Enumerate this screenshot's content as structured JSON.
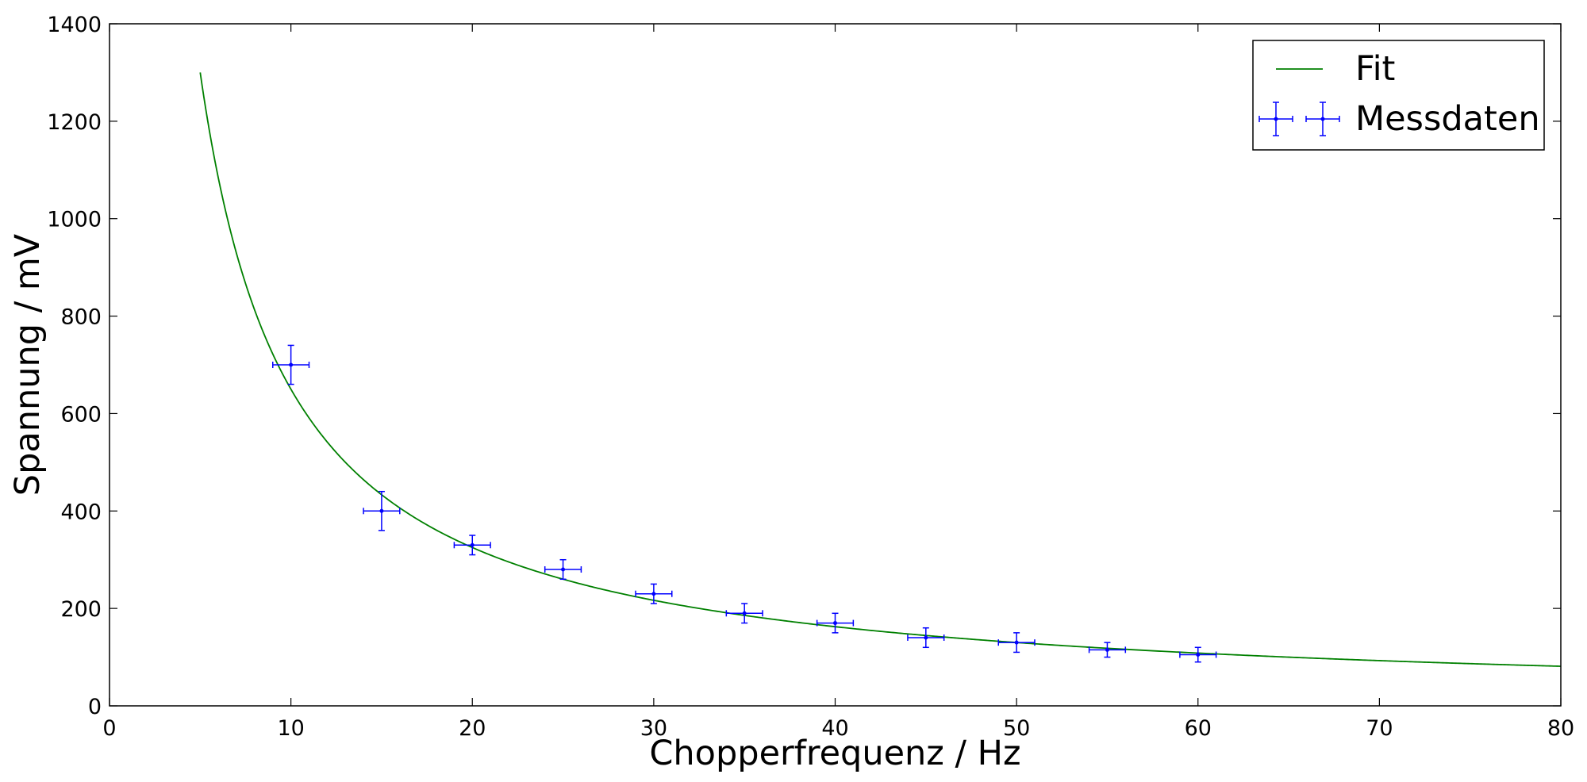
{
  "chart_data": {
    "type": "scatter",
    "xlabel": "Chopperfrequenz / Hz",
    "ylabel": "Spannung / mV",
    "xlim": [
      0,
      80
    ],
    "ylim": [
      0,
      1400
    ],
    "xticks": [
      0,
      10,
      20,
      30,
      40,
      50,
      60,
      70,
      80
    ],
    "yticks": [
      0,
      200,
      400,
      600,
      800,
      1000,
      1200,
      1400
    ],
    "grid": false,
    "legend_position": "top-right",
    "series": [
      {
        "name": "Fit",
        "kind": "line",
        "color": "#008000",
        "x_start": 5,
        "x_end": 80,
        "function": "y = 6500 / x",
        "coefficient": 6500
      },
      {
        "name": "Messdaten",
        "kind": "errorbar",
        "color": "#0000ff",
        "x": [
          10,
          15,
          20,
          25,
          30,
          35,
          40,
          45,
          50,
          55,
          60
        ],
        "y": [
          700,
          400,
          330,
          280,
          230,
          190,
          170,
          140,
          130,
          115,
          105
        ],
        "xerr": [
          1,
          1,
          1,
          1,
          1,
          1,
          1,
          1,
          1,
          1,
          1
        ],
        "yerr": [
          40,
          40,
          20,
          20,
          20,
          20,
          20,
          20,
          20,
          15,
          15
        ]
      }
    ]
  }
}
